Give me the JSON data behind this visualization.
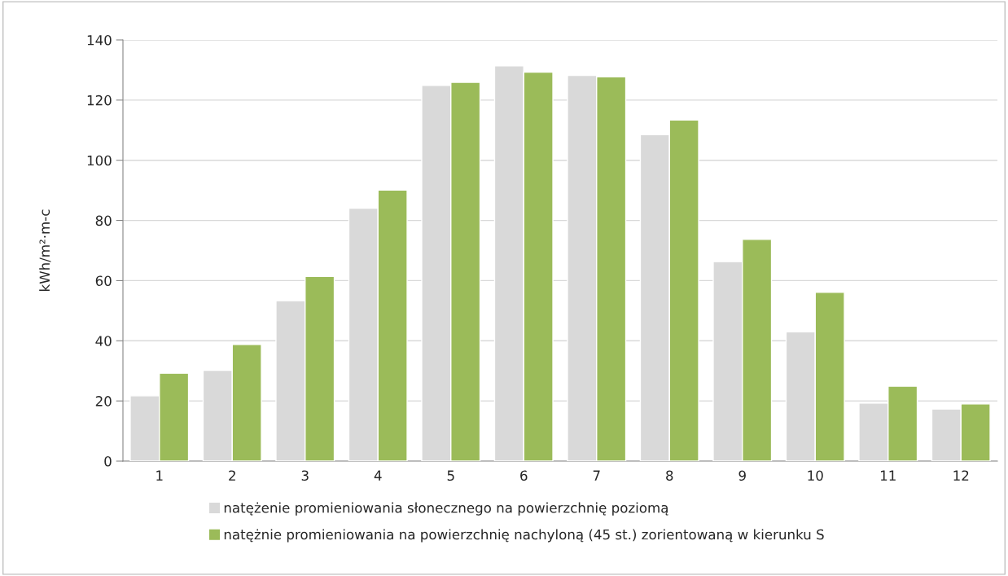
{
  "chart_data": {
    "type": "bar",
    "ylabel": "kWh/m²·m-c",
    "categories": [
      "1",
      "2",
      "3",
      "4",
      "5",
      "6",
      "7",
      "8",
      "9",
      "10",
      "11",
      "12"
    ],
    "series": [
      {
        "name": "natężenie promieniowania słonecznego na powierzchnię poziomą",
        "color": "#d9d9d9",
        "values": [
          21.7,
          30.2,
          53.3,
          84.1,
          124.9,
          131.4,
          128.2,
          108.5,
          66.3,
          43.0,
          19.3,
          17.3
        ]
      },
      {
        "name": "natężnie promieniowania na powierzchnię nachyloną (45 st.) zorientowaną w kierunku S",
        "color": "#9bbb59",
        "values": [
          29.2,
          38.8,
          61.4,
          90.1,
          125.9,
          129.3,
          127.7,
          113.4,
          73.7,
          56.1,
          24.9,
          19.0
        ]
      }
    ],
    "ylim": [
      0,
      140
    ],
    "yticks": [
      0,
      20,
      40,
      60,
      80,
      100,
      120,
      140
    ],
    "grid": "y",
    "legend": "bottom"
  }
}
